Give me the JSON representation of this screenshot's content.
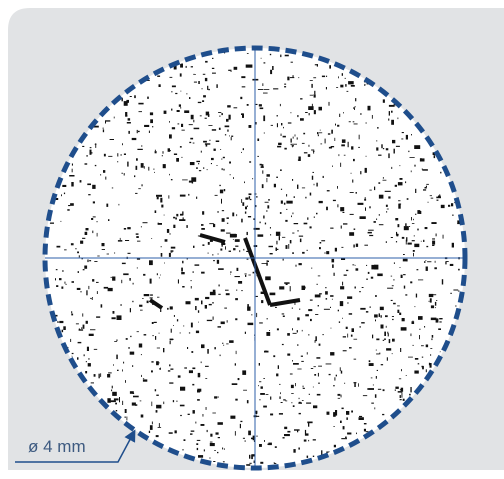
{
  "label": "ø 4 mm"
}
